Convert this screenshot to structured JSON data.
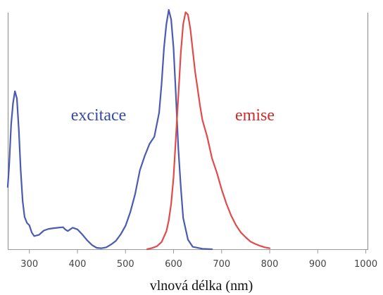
{
  "chart_data": {
    "type": "line",
    "xlabel": "vlnová délka (nm)",
    "xlim": [
      255,
      1005
    ],
    "ylim": [
      0,
      1
    ],
    "x_ticks": [
      300,
      400,
      500,
      600,
      700,
      800,
      900,
      1000
    ],
    "y_ticks": [],
    "grid": false,
    "series": [
      {
        "name": "excitace",
        "color": "#4a5bb1",
        "x": [
          255,
          258,
          262,
          266,
          270,
          274,
          278,
          282,
          286,
          290,
          295,
          300,
          305,
          310,
          320,
          330,
          340,
          350,
          360,
          370,
          375,
          380,
          390,
          400,
          410,
          420,
          430,
          440,
          450,
          460,
          470,
          480,
          490,
          500,
          510,
          520,
          530,
          540,
          550,
          560,
          570,
          575,
          580,
          585,
          590,
          595,
          600,
          605,
          610,
          615,
          620,
          630,
          640,
          660,
          680
        ],
        "y": [
          0.26,
          0.35,
          0.52,
          0.61,
          0.66,
          0.63,
          0.5,
          0.33,
          0.2,
          0.135,
          0.11,
          0.1,
          0.07,
          0.055,
          0.06,
          0.078,
          0.085,
          0.088,
          0.09,
          0.092,
          0.082,
          0.076,
          0.09,
          0.083,
          0.062,
          0.038,
          0.018,
          0.006,
          0.004,
          0.008,
          0.02,
          0.035,
          0.062,
          0.098,
          0.155,
          0.23,
          0.33,
          0.39,
          0.44,
          0.47,
          0.57,
          0.69,
          0.84,
          0.94,
          1.0,
          0.96,
          0.84,
          0.64,
          0.42,
          0.26,
          0.13,
          0.04,
          0.01,
          0.002,
          0.0
        ]
      },
      {
        "name": "emise",
        "color": "#e14b4b",
        "x": [
          545,
          555,
          565,
          575,
          585,
          590,
          595,
          600,
          605,
          610,
          615,
          620,
          625,
          630,
          635,
          640,
          645,
          650,
          655,
          660,
          670,
          680,
          690,
          700,
          710,
          720,
          730,
          740,
          750,
          760,
          770,
          780,
          790,
          800
        ],
        "y": [
          0.0,
          0.005,
          0.012,
          0.03,
          0.075,
          0.12,
          0.19,
          0.3,
          0.47,
          0.64,
          0.82,
          0.94,
          0.99,
          0.98,
          0.92,
          0.83,
          0.74,
          0.67,
          0.6,
          0.54,
          0.47,
          0.38,
          0.32,
          0.25,
          0.19,
          0.14,
          0.1,
          0.07,
          0.05,
          0.032,
          0.022,
          0.014,
          0.008,
          0.004
        ]
      }
    ]
  }
}
